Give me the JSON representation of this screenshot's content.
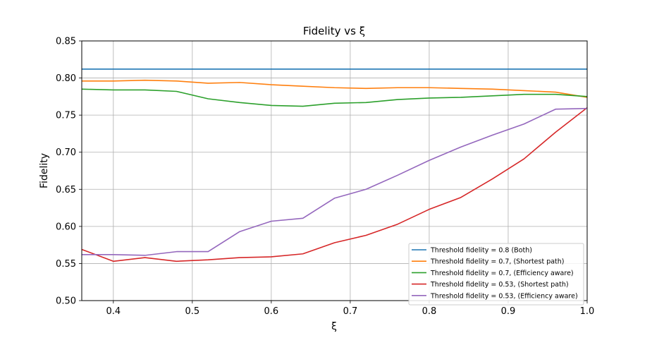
{
  "chart_data": {
    "type": "line",
    "title": "Fidelity vs ξ",
    "xlabel": "ξ",
    "ylabel": "Fidelity",
    "xlim": [
      0.36,
      1.0
    ],
    "ylim": [
      0.5,
      0.85
    ],
    "xticks": [
      0.4,
      0.5,
      0.6,
      0.7,
      0.8,
      0.9,
      1.0
    ],
    "xtick_labels": [
      "0.4",
      "0.5",
      "0.6",
      "0.7",
      "0.8",
      "0.9",
      "1.0"
    ],
    "yticks": [
      0.5,
      0.55,
      0.6,
      0.65,
      0.7,
      0.75,
      0.8,
      0.85
    ],
    "ytick_labels": [
      "0.50",
      "0.55",
      "0.60",
      "0.65",
      "0.70",
      "0.75",
      "0.80",
      "0.85"
    ],
    "grid": true,
    "legend_position": "lower-right",
    "x": [
      0.36,
      0.4,
      0.44,
      0.48,
      0.52,
      0.56,
      0.6,
      0.64,
      0.68,
      0.72,
      0.76,
      0.8,
      0.84,
      0.88,
      0.92,
      0.96,
      1.0
    ],
    "series": [
      {
        "name": "Threshold fidelity = 0.8 (Both)",
        "color": "#1f77b4",
        "values": [
          0.812,
          0.812,
          0.812,
          0.812,
          0.812,
          0.812,
          0.812,
          0.812,
          0.812,
          0.812,
          0.812,
          0.812,
          0.812,
          0.812,
          0.812,
          0.812,
          0.812
        ]
      },
      {
        "name": "Threshold fidelity = 0.7, (Shortest path)",
        "color": "#ff7f0e",
        "values": [
          0.796,
          0.796,
          0.797,
          0.796,
          0.793,
          0.794,
          0.791,
          0.789,
          0.787,
          0.786,
          0.787,
          0.787,
          0.786,
          0.785,
          0.783,
          0.781,
          0.774
        ]
      },
      {
        "name": "Threshold fidelity = 0.7, (Efficiency aware)",
        "color": "#2ca02c",
        "values": [
          0.785,
          0.784,
          0.784,
          0.782,
          0.772,
          0.767,
          0.763,
          0.762,
          0.766,
          0.767,
          0.771,
          0.773,
          0.774,
          0.776,
          0.778,
          0.778,
          0.775
        ]
      },
      {
        "name": "Threshold fidelity = 0.53, (Shortest path)",
        "color": "#d62728",
        "values": [
          0.569,
          0.553,
          0.558,
          0.553,
          0.555,
          0.558,
          0.559,
          0.563,
          0.578,
          0.588,
          0.603,
          0.623,
          0.639,
          0.664,
          0.691,
          0.727,
          0.76
        ]
      },
      {
        "name": "Threshold fidelity = 0.53, (Efficiency aware)",
        "color": "#9467bd",
        "values": [
          0.562,
          0.562,
          0.561,
          0.566,
          0.566,
          0.593,
          0.607,
          0.611,
          0.638,
          0.65,
          0.669,
          0.689,
          0.707,
          0.723,
          0.738,
          0.758,
          0.759
        ]
      }
    ]
  }
}
